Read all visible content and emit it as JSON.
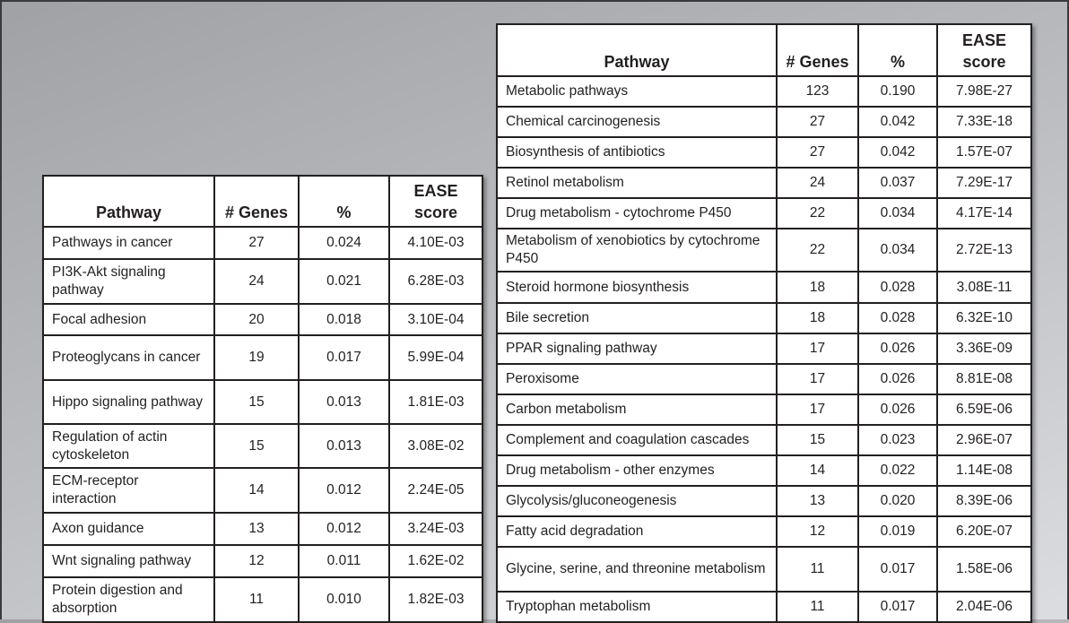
{
  "left_table": {
    "header": [
      "Pathway",
      "# Genes",
      "%",
      "EASE score"
    ],
    "rows": [
      [
        "Pathways in cancer",
        "27",
        "0.024",
        "4.10E-03"
      ],
      [
        "PI3K-Akt signaling pathway",
        "24",
        "0.021",
        "6.28E-03"
      ],
      [
        "Focal adhesion",
        "20",
        "0.018",
        "3.10E-04"
      ],
      [
        "Proteoglycans in cancer",
        "19",
        "0.017",
        "5.99E-04"
      ],
      [
        "Hippo signaling pathway",
        "15",
        "0.013",
        "1.81E-03"
      ],
      [
        "Regulation of actin cytoskeleton",
        "15",
        "0.013",
        "3.08E-02"
      ],
      [
        "ECM-receptor interaction",
        "14",
        "0.012",
        "2.24E-05"
      ],
      [
        "Axon guidance",
        "13",
        "0.012",
        "3.24E-03"
      ],
      [
        "Wnt signaling pathway",
        "12",
        "0.011",
        "1.62E-02"
      ],
      [
        "Protein digestion and absorption",
        "11",
        "0.010",
        "1.82E-03"
      ]
    ]
  },
  "right_table": {
    "header": [
      "Pathway",
      "# Genes",
      "%",
      "EASE score"
    ],
    "rows": [
      [
        "Metabolic pathways",
        "123",
        "0.190",
        "7.98E-27"
      ],
      [
        "Chemical carcinogenesis",
        "27",
        "0.042",
        "7.33E-18"
      ],
      [
        "Biosynthesis of antibiotics",
        "27",
        "0.042",
        "1.57E-07"
      ],
      [
        "Retinol metabolism",
        "24",
        "0.037",
        "7.29E-17"
      ],
      [
        "Drug metabolism - cytochrome P450",
        "22",
        "0.034",
        "4.17E-14"
      ],
      [
        "Metabolism of xenobiotics by cytochrome P450",
        "22",
        "0.034",
        "2.72E-13"
      ],
      [
        "Steroid hormone biosynthesis",
        "18",
        "0.028",
        "3.08E-11"
      ],
      [
        "Bile secretion",
        "18",
        "0.028",
        "6.32E-10"
      ],
      [
        "PPAR signaling pathway",
        "17",
        "0.026",
        "3.36E-09"
      ],
      [
        "Peroxisome",
        "17",
        "0.026",
        "8.81E-08"
      ],
      [
        "Carbon metabolism",
        "17",
        "0.026",
        "6.59E-06"
      ],
      [
        "Complement and coagulation cascades",
        "15",
        "0.023",
        "2.96E-07"
      ],
      [
        "Drug metabolism - other enzymes",
        "14",
        "0.022",
        "1.14E-08"
      ],
      [
        "Glycolysis/gluconeogenesis",
        "13",
        "0.020",
        "8.39E-06"
      ],
      [
        "Fatty acid degradation",
        "12",
        "0.019",
        "6.20E-07"
      ],
      [
        "Glycine, serine, and threonine metabolism",
        "11",
        "0.017",
        "1.58E-06"
      ],
      [
        "Tryptophan metabolism",
        "11",
        "0.017",
        "2.04E-06"
      ]
    ]
  }
}
